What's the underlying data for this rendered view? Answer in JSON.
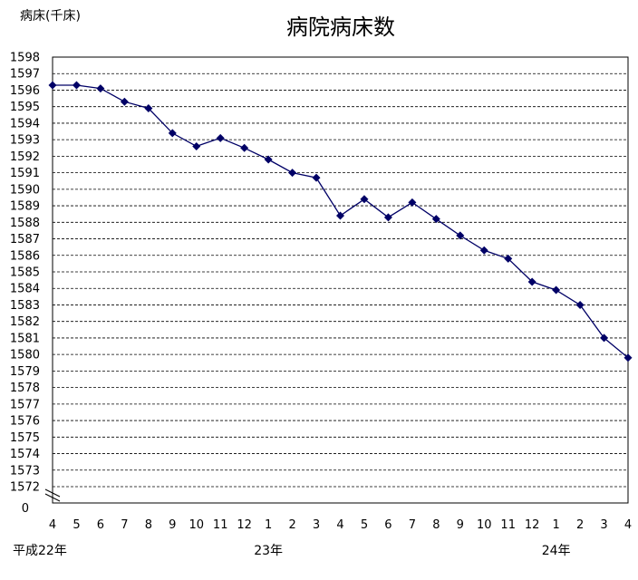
{
  "chart_data": {
    "type": "line",
    "title": "病院病床数",
    "ylabel": "病床(千床)",
    "y_axis_break": true,
    "y_zero_label": "0",
    "ylim": [
      1572,
      1598
    ],
    "y_ticks": [
      1572,
      1573,
      1574,
      1575,
      1576,
      1577,
      1578,
      1579,
      1580,
      1581,
      1582,
      1583,
      1584,
      1585,
      1586,
      1587,
      1588,
      1589,
      1590,
      1591,
      1592,
      1593,
      1594,
      1595,
      1596,
      1597,
      1598
    ],
    "grid": "dashed horizontal",
    "categories": [
      "4",
      "5",
      "6",
      "7",
      "8",
      "9",
      "10",
      "11",
      "12",
      "1",
      "2",
      "3",
      "4",
      "5",
      "6",
      "7",
      "8",
      "9",
      "10",
      "11",
      "12",
      "1",
      "2",
      "3",
      "4"
    ],
    "year_labels": [
      {
        "text": "平成22年",
        "index": 0
      },
      {
        "text": "23年",
        "index": 9
      },
      {
        "text": "24年",
        "index": 21
      }
    ],
    "series": [
      {
        "values": [
          1596.3,
          1596.3,
          1596.1,
          1595.3,
          1594.9,
          1593.4,
          1592.6,
          1593.1,
          1592.5,
          1591.8,
          1591.0,
          1590.7,
          1588.4,
          1589.4,
          1588.3,
          1589.2,
          1588.2,
          1587.2,
          1586.3,
          1585.8,
          1584.4,
          1583.9,
          1583.0,
          1581.0,
          1579.8
        ],
        "color": "#000066"
      }
    ]
  }
}
